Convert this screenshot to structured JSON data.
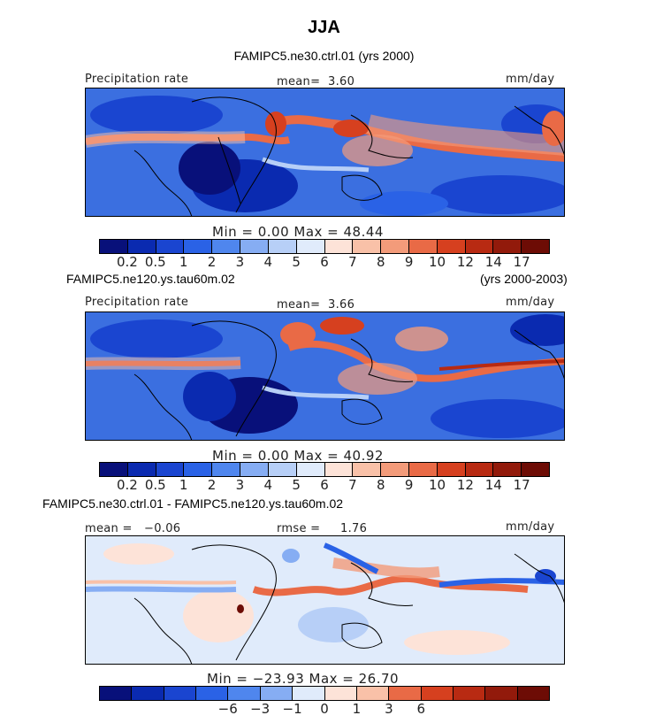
{
  "title": "JJA",
  "panels": [
    {
      "header_left": "FAMIPC5.ne30.ctrl.01 (yrs 2000)",
      "variable": "Precipitation rate",
      "mean_label": "mean=",
      "mean_value": "3.60",
      "units": "mm/day",
      "stats": "Min =    0.00  Max =   48.44",
      "colorbar_labels": [
        "0.2",
        "0.5",
        "1",
        "2",
        "3",
        "4",
        "5",
        "6",
        "7",
        "8",
        "9",
        "10",
        "12",
        "14",
        "17"
      ]
    },
    {
      "header_left": "FAMIPC5.ne120.ys.tau60m.02",
      "header_right": "(yrs 2000-2003)",
      "variable": "Precipitation rate",
      "mean_label": "mean=",
      "mean_value": "3.66",
      "units": "mm/day",
      "stats": "Min =    0.00  Max =   40.92",
      "colorbar_labels": [
        "0.2",
        "0.5",
        "1",
        "2",
        "3",
        "4",
        "5",
        "6",
        "7",
        "8",
        "9",
        "10",
        "12",
        "14",
        "17"
      ]
    },
    {
      "header_left": "FAMIPC5.ne30.ctrl.01 - FAMIPC5.ne120.ys.tau60m.02",
      "mean_label": "mean =",
      "mean_value": "−0.06",
      "rmse_label": "rmse =",
      "rmse_value": "1.76",
      "units": "mm/day",
      "stats": "Min = −23.93  Max =   26.70",
      "colorbar_labels": [
        "−6",
        "−3",
        "−1",
        "0",
        "1",
        "3",
        "6"
      ]
    }
  ],
  "colors": {
    "precip_scale": [
      "#08107a",
      "#0a2ab0",
      "#1a45d0",
      "#2a62e6",
      "#4f86ee",
      "#86adf3",
      "#b7cff7",
      "#e0ebfb",
      "#fde3d8",
      "#f9c1a8",
      "#f39b7a",
      "#e96a46",
      "#d6401f",
      "#b82a12",
      "#921a0b",
      "#6d0c05"
    ],
    "diff_scale": [
      "#08107a",
      "#0a2ab0",
      "#1a45d0",
      "#2a62e6",
      "#4f86ee",
      "#86adf3",
      "#e0ebfb",
      "#fde3d8",
      "#f9c1a8",
      "#e96a46",
      "#d6401f",
      "#b82a12",
      "#921a0b",
      "#6d0c05"
    ],
    "ocean_base": "#3b6fe0",
    "land_dry": "#0c2a9e"
  }
}
